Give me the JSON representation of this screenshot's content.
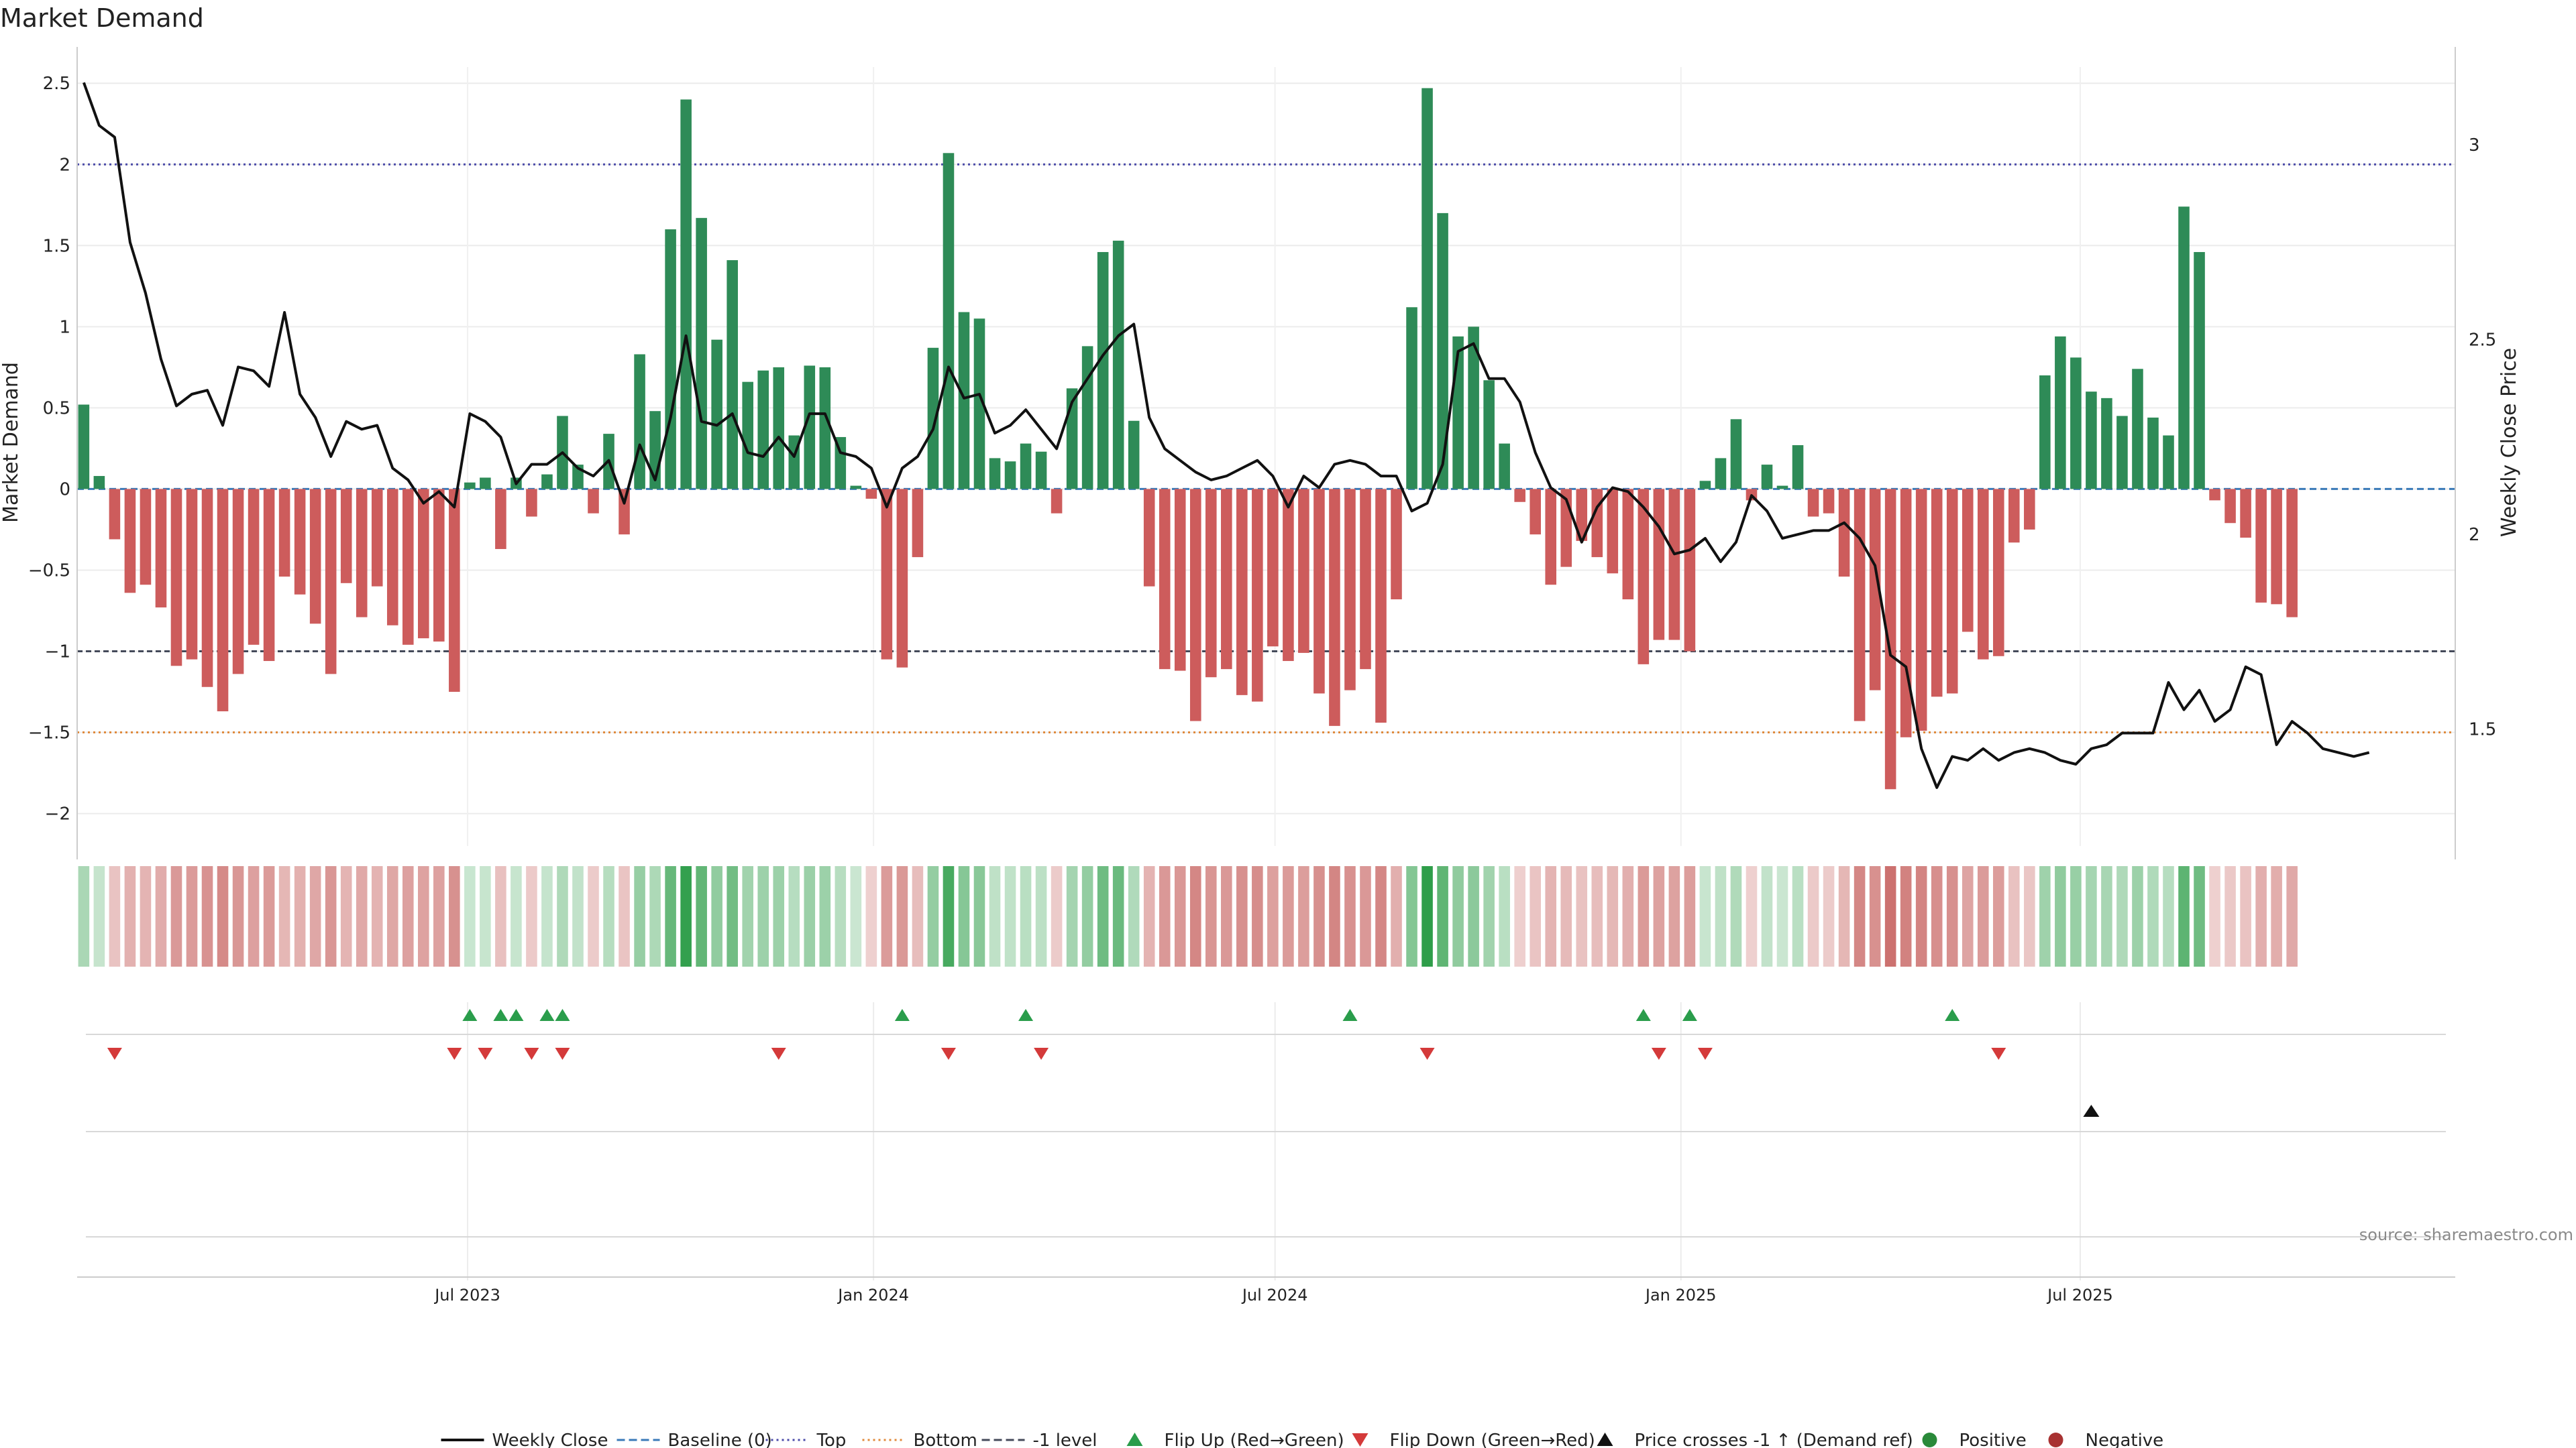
{
  "chart_data": {
    "type": "bar",
    "title": "Market Demand",
    "ylabel": "Market Demand",
    "y2label": "Weekly Close Price",
    "ylim": [
      -2.2,
      2.6
    ],
    "y2lim": [
      1.2,
      3.2
    ],
    "yticks": [
      "2.5",
      "2",
      "1.5",
      "1",
      "0.5",
      "0",
      "−0.5",
      "−1",
      "−1.5",
      "−2"
    ],
    "ytick_values": [
      2.5,
      2,
      1.5,
      1,
      0.5,
      0,
      -0.5,
      -1,
      -1.5,
      -2
    ],
    "y2ticks": [
      "3",
      "2.5",
      "2",
      "1.5"
    ],
    "y2tick_values": [
      3,
      2.5,
      2,
      1.5
    ],
    "x_start": "2023-01-08",
    "x_step_days": 7,
    "x_range": [
      "2023-01-05",
      "2025-12-18"
    ],
    "xticks": [
      {
        "label": "Jul 2023",
        "date": "2023-07-01"
      },
      {
        "label": "Jan 2024",
        "date": "2024-01-01"
      },
      {
        "label": "Jul 2024",
        "date": "2024-07-01"
      },
      {
        "label": "Jan 2025",
        "date": "2025-01-01"
      },
      {
        "label": "Jul 2025",
        "date": "2025-07-01"
      }
    ],
    "reference_lines": [
      {
        "name": "Top",
        "value": 2,
        "color": "#4a4aa8"
      },
      {
        "name": "-1 level",
        "value": -1,
        "color": "#444a5a"
      },
      {
        "name": "Bottom",
        "value": -1.5,
        "color": "#e08a3c"
      },
      {
        "name": "Baseline (0)",
        "value": 0,
        "color": "#3a7ab8"
      }
    ],
    "series": [
      {
        "name": "Market Demand",
        "values": [
          0.52,
          0.08,
          -0.31,
          -0.64,
          -0.59,
          -0.73,
          -1.09,
          -1.05,
          -1.22,
          -1.37,
          -1.14,
          -0.96,
          -1.06,
          -0.54,
          -0.65,
          -0.83,
          -1.14,
          -0.58,
          -0.79,
          -0.6,
          -0.84,
          -0.96,
          -0.92,
          -0.94,
          -1.25,
          0.04,
          0.07,
          -0.37,
          0.07,
          -0.17,
          0.09,
          0.45,
          0.15,
          -0.15,
          0.34,
          -0.28,
          0.83,
          0.48,
          1.6,
          2.4,
          1.67,
          0.92,
          1.41,
          0.66,
          0.73,
          0.75,
          0.33,
          0.76,
          0.75,
          0.32,
          0.02,
          -0.06,
          -1.05,
          -1.1,
          -0.42,
          0.87,
          2.07,
          1.09,
          1.05,
          0.19,
          0.17,
          0.28,
          0.23,
          -0.15,
          0.62,
          0.88,
          1.46,
          1.53,
          0.42,
          -0.6,
          -1.11,
          -1.12,
          -1.43,
          -1.16,
          -1.11,
          -1.27,
          -1.31,
          -0.97,
          -1.06,
          -1.01,
          -1.26,
          -1.46,
          -1.24,
          -1.11,
          -1.44,
          -0.68,
          1.12,
          2.47,
          1.7,
          0.94,
          1.0,
          0.67,
          0.28,
          -0.08,
          -0.28,
          -0.59,
          -0.48,
          -0.32,
          -0.42,
          -0.52,
          -0.68,
          -1.08,
          -0.93,
          -0.93,
          -1.0,
          0.05,
          0.19,
          0.43,
          -0.07,
          0.15,
          0.02,
          0.27,
          -0.17,
          -0.15,
          -0.54,
          -1.43,
          -1.24,
          -1.85,
          -1.53,
          -1.49,
          -1.28,
          -1.26,
          -0.88,
          -1.05,
          -1.03,
          -0.33,
          -0.25,
          0.7,
          0.94,
          0.81,
          0.6,
          0.56,
          0.45,
          0.74,
          0.44,
          0.33,
          1.74,
          1.46,
          -0.07,
          -0.21,
          -0.3,
          -0.7,
          -0.71,
          -0.79
        ]
      },
      {
        "name": "Weekly Close",
        "axis": "right",
        "values": [
          3.16,
          3.05,
          3.02,
          2.75,
          2.62,
          2.45,
          2.33,
          2.36,
          2.37,
          2.28,
          2.43,
          2.42,
          2.38,
          2.57,
          2.36,
          2.3,
          2.2,
          2.29,
          2.27,
          2.28,
          2.17,
          2.14,
          2.08,
          2.11,
          2.07,
          2.31,
          2.29,
          2.25,
          2.13,
          2.18,
          2.18,
          2.21,
          2.17,
          2.15,
          2.19,
          2.08,
          2.23,
          2.14,
          2.3,
          2.51,
          2.29,
          2.28,
          2.31,
          2.21,
          2.2,
          2.25,
          2.2,
          2.31,
          2.31,
          2.21,
          2.2,
          2.17,
          2.07,
          2.17,
          2.2,
          2.27,
          2.43,
          2.35,
          2.36,
          2.26,
          2.28,
          2.32,
          2.27,
          2.22,
          2.34,
          2.4,
          2.46,
          2.51,
          2.54,
          2.3,
          2.22,
          2.19,
          2.16,
          2.14,
          2.15,
          2.17,
          2.19,
          2.15,
          2.07,
          2.15,
          2.12,
          2.18,
          2.19,
          2.18,
          2.15,
          2.15,
          2.06,
          2.08,
          2.18,
          2.47,
          2.49,
          2.4,
          2.4,
          2.34,
          2.21,
          2.12,
          2.09,
          1.98,
          2.07,
          2.12,
          2.11,
          2.07,
          2.02,
          1.95,
          1.96,
          1.99,
          1.93,
          1.98,
          2.1,
          2.06,
          1.99,
          2.0,
          2.01,
          2.01,
          2.03,
          1.99,
          1.92,
          1.69,
          1.66,
          1.45,
          1.35,
          1.43,
          1.42,
          1.45,
          1.42,
          1.44,
          1.45,
          1.44,
          1.42,
          1.41,
          1.45,
          1.46,
          1.49,
          1.49,
          1.49,
          1.62,
          1.55,
          1.6,
          1.52,
          1.55,
          1.66,
          1.64,
          1.46,
          1.52,
          1.49,
          1.45,
          1.44,
          1.43,
          1.44
        ]
      }
    ],
    "heatmap_strip": {
      "positive_color": "#2f9e4a",
      "negative_color": "#c0504d"
    },
    "flip_up_weeks": [
      25,
      27,
      28,
      30,
      31,
      53,
      61,
      82,
      101,
      104,
      121
    ],
    "flip_down_weeks": [
      2,
      24,
      26,
      29,
      31,
      45,
      56,
      62,
      87,
      102,
      105,
      124
    ],
    "price_cross_weeks": [
      130
    ],
    "legend": [
      {
        "label": "Weekly Close",
        "kind": "line",
        "color": "#111111"
      },
      {
        "label": "Baseline (0)",
        "kind": "dash",
        "color": "#3a7ab8"
      },
      {
        "label": "Top",
        "kind": "dot",
        "color": "#4a4aa8"
      },
      {
        "label": "Bottom",
        "kind": "dot",
        "color": "#e08a3c"
      },
      {
        "label": "-1 level",
        "kind": "dash",
        "color": "#444a5a"
      },
      {
        "label": "Flip Up (Red→Green)",
        "kind": "tri-up",
        "color": "#2a9d4b"
      },
      {
        "label": "Flip Down (Green→Red)",
        "kind": "tri-down",
        "color": "#d43a3a"
      },
      {
        "label": "Price crosses -1 ↑ (Demand ref)",
        "kind": "tri-up",
        "color": "#111111"
      },
      {
        "label": "Positive",
        "kind": "circle",
        "color": "#2a8a3a"
      },
      {
        "label": "Negative",
        "kind": "circle",
        "color": "#a83232"
      }
    ],
    "source": "source: sharemaestro.com",
    "colors": {
      "positive_bar": "#2e8b57",
      "negative_bar": "#cd5c5c",
      "price_line": "#111111"
    }
  }
}
